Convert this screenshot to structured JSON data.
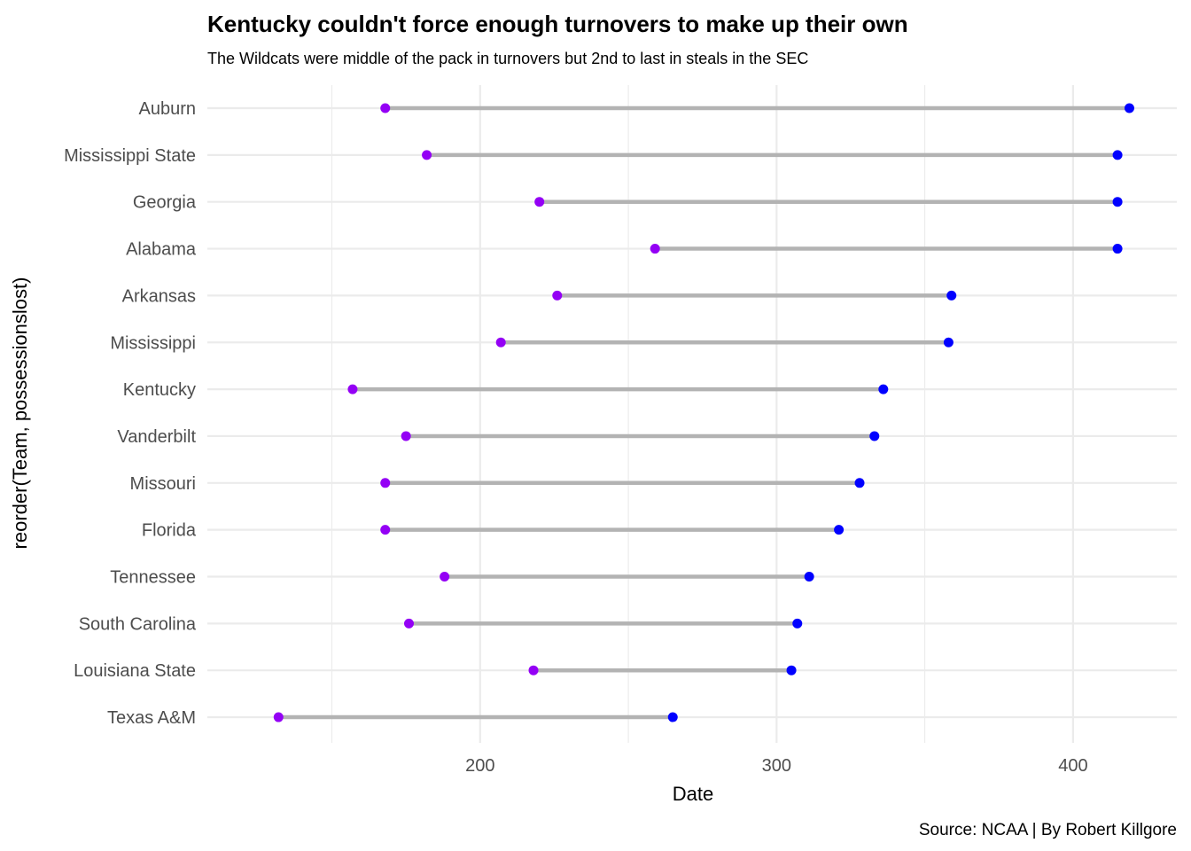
{
  "chart_data": {
    "type": "dumbbell",
    "title": "Kentucky couldn't force enough turnovers to make up their own",
    "subtitle": "The Wildcats were middle of the pack in turnovers but 2nd to last in steals in the SEC",
    "caption": "Source: NCAA | By Robert Killgore",
    "xlabel": "Date",
    "ylabel": "reorder(Team, possessionslost)",
    "xlim": [
      108,
      435
    ],
    "x_ticks": [
      200,
      300,
      400
    ],
    "grid": true,
    "colors": {
      "start": "#9400f5",
      "end": "#0000ff",
      "segment": "#b3b3b3",
      "grid": "#ebebeb"
    },
    "categories": [
      "Auburn",
      "Mississippi State",
      "Georgia",
      "Alabama",
      "Arkansas",
      "Mississippi",
      "Kentucky",
      "Vanderbilt",
      "Missouri",
      "Florida",
      "Tennessee",
      "South Carolina",
      "Louisiana State",
      "Texas A&M"
    ],
    "series": [
      {
        "values": [
          168,
          182,
          220,
          259,
          226,
          207,
          157,
          175,
          168,
          168,
          188,
          176,
          218,
          132
        ]
      },
      {
        "values": [
          419,
          415,
          415,
          415,
          359,
          358,
          336,
          333,
          328,
          321,
          311,
          307,
          305,
          265
        ]
      }
    ]
  }
}
